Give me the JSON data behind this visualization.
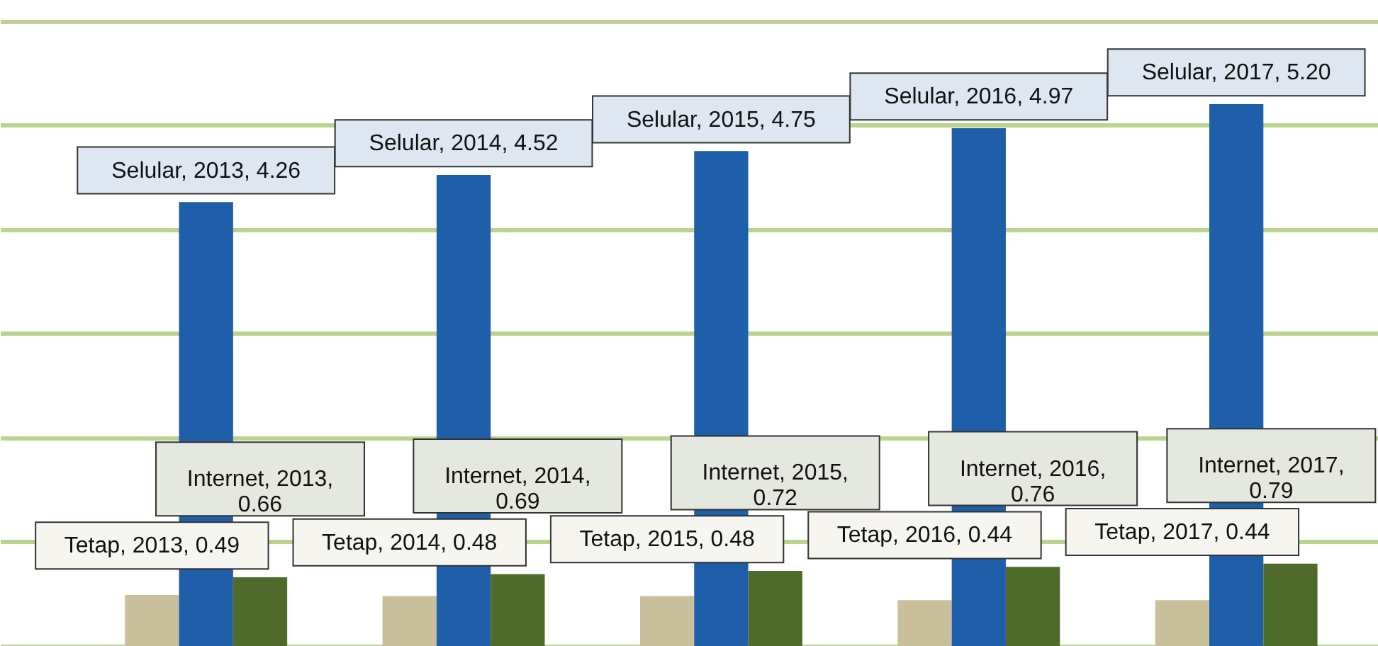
{
  "chart_data": {
    "type": "bar",
    "categories": [
      null,
      null,
      null,
      null,
      null
    ],
    "series": [
      {
        "color": "#c9c09b",
        "values": [
          0.49,
          0.48,
          0.48,
          0.44,
          0.44
        ],
        "value_labels": [
          "Tetap, 2013, 0.49",
          "Tetap, 2014, 0.48",
          "Tetap, 2015, 0.48",
          "Tetap, 2016, 0.44",
          "Tetap, 2017, 0.44"
        ]
      },
      {
        "color": "#1f5ea8",
        "values": [
          4.26,
          4.52,
          4.75,
          4.97,
          5.2
        ],
        "value_labels": [
          "Selular, 2013, 4.26",
          "Selular, 2014, 4.52",
          "Selular, 2015, 4.75",
          "Selular, 2016, 4.97",
          "Selular, 2017, 5.20"
        ]
      },
      {
        "color": "#4f6b2b",
        "values": [
          0.66,
          0.69,
          0.72,
          0.76,
          0.79
        ],
        "value_labels": [
          "Internet, 2013,\n0.66",
          "Internet, 2014,\n0.69",
          "Internet, 2015,\n0.72",
          "Internet, 2016,\n0.76",
          "Internet, 2017,\n0.79"
        ]
      }
    ],
    "ylim": [
      0,
      6.2
    ],
    "yticks": [
      {
        "value": 0,
        "label": null
      },
      {
        "value": 1,
        "label": null
      },
      {
        "value": 2,
        "label": null
      },
      {
        "value": 3,
        "label": null
      },
      {
        "value": 4,
        "label": null
      },
      {
        "value": 5,
        "label": null
      },
      {
        "value": 6,
        "label": null
      }
    ],
    "grid": "y"
  }
}
